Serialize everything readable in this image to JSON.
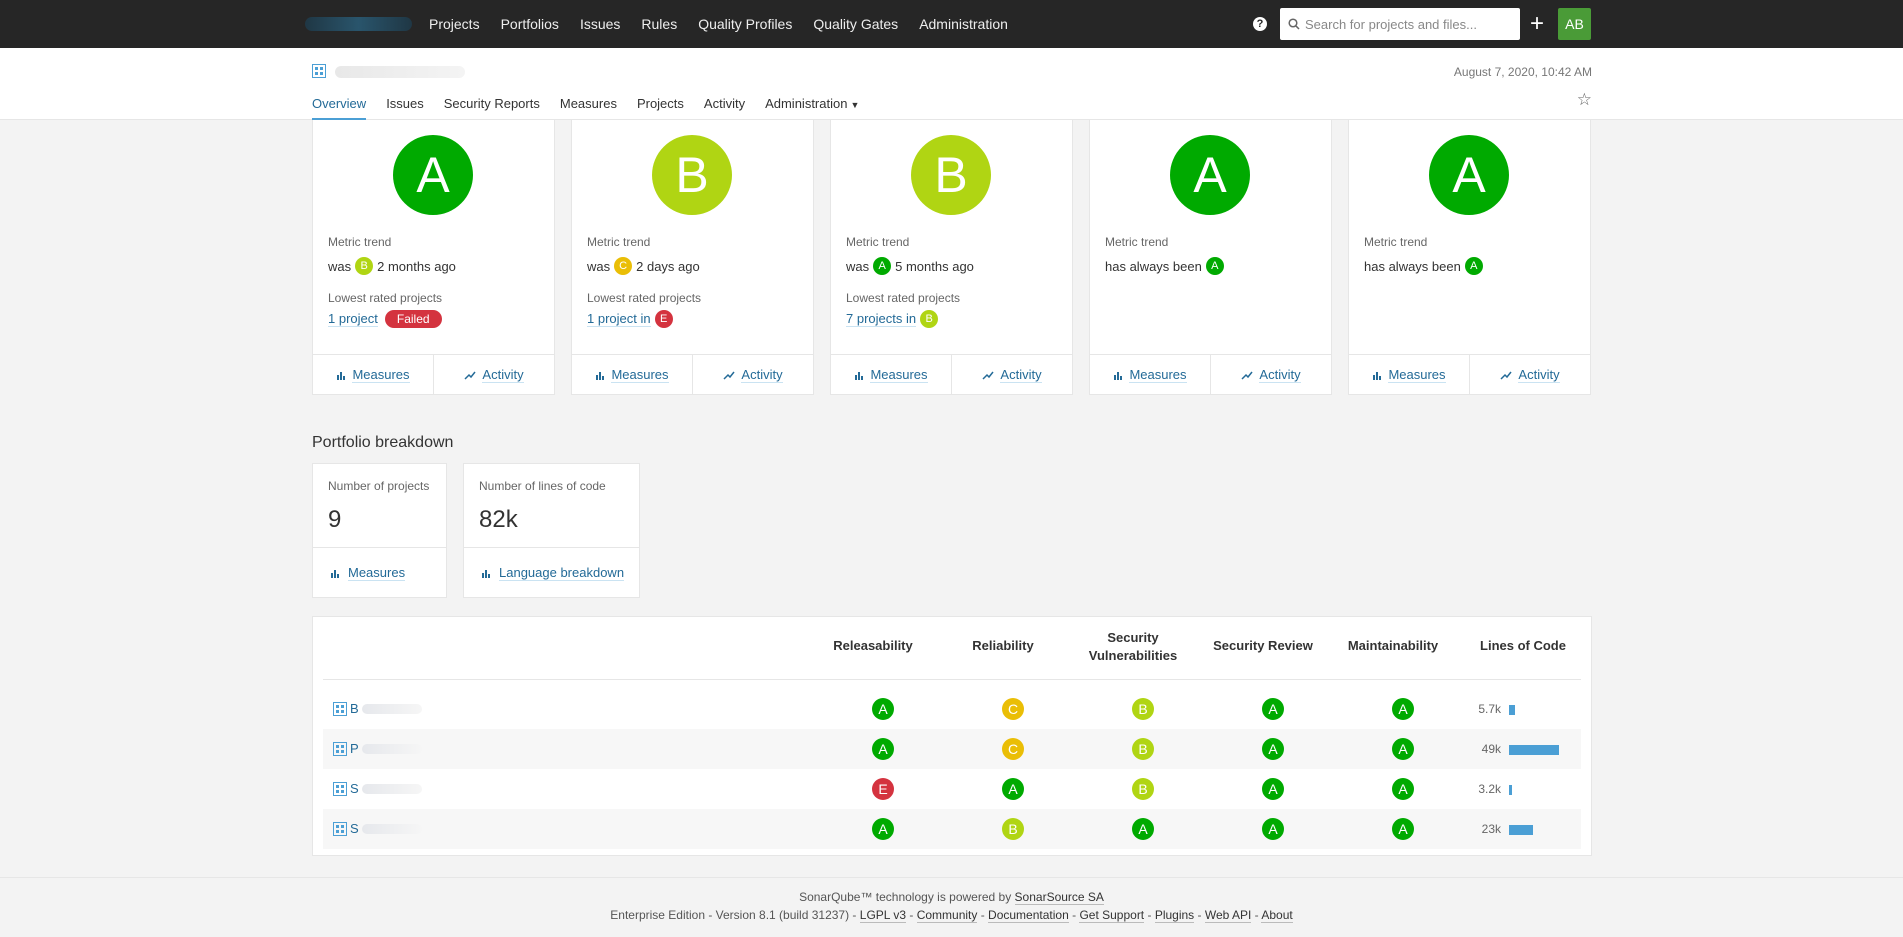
{
  "nav": {
    "links": [
      "Projects",
      "Portfolios",
      "Issues",
      "Rules",
      "Quality Profiles",
      "Quality Gates",
      "Administration"
    ],
    "search_placeholder": "Search for projects and files...",
    "user_initials": "AB"
  },
  "component": {
    "name_prefix": ".",
    "date": "August 7, 2020, 10:42 AM",
    "tabs": [
      "Overview",
      "Issues",
      "Security Reports",
      "Measures",
      "Projects",
      "Activity",
      "Administration"
    ]
  },
  "rating_cards": [
    {
      "rating": "A",
      "metric_trend_label": "Metric trend",
      "trend_prefix": "was",
      "trend_rating": "B",
      "trend_suffix": "2 months ago",
      "lowest_label": "Lowest rated projects",
      "lowest_link": "1 project",
      "lowest_badge": "Failed",
      "measures": "Measures",
      "activity": "Activity"
    },
    {
      "rating": "B",
      "metric_trend_label": "Metric trend",
      "trend_prefix": "was",
      "trend_rating": "C",
      "trend_suffix": "2 days ago",
      "lowest_label": "Lowest rated projects",
      "lowest_link": "1 project",
      "lowest_in": "in",
      "lowest_rating": "E",
      "measures": "Measures",
      "activity": "Activity"
    },
    {
      "rating": "B",
      "metric_trend_label": "Metric trend",
      "trend_prefix": "was",
      "trend_rating": "A",
      "trend_suffix": "5 months ago",
      "lowest_label": "Lowest rated projects",
      "lowest_link": "7 projects",
      "lowest_in": "in",
      "lowest_rating": "B",
      "measures": "Measures",
      "activity": "Activity"
    },
    {
      "rating": "A",
      "metric_trend_label": "Metric trend",
      "trend_prefix": "has always been",
      "trend_rating": "A",
      "measures": "Measures",
      "activity": "Activity"
    },
    {
      "rating": "A",
      "metric_trend_label": "Metric trend",
      "trend_prefix": "has always been",
      "trend_rating": "A",
      "measures": "Measures",
      "activity": "Activity"
    }
  ],
  "breakdown": {
    "title": "Portfolio breakdown",
    "projects_label": "Number of projects",
    "projects_value": "9",
    "projects_link": "Measures",
    "loc_label": "Number of lines of code",
    "loc_value": "82k",
    "loc_link": "Language breakdown"
  },
  "table": {
    "headers": {
      "releasability": "Releasability",
      "reliability": "Reliability",
      "security_line1": "Security",
      "security_line2": "Vulnerabilities",
      "security_review": "Security Review",
      "maintainability": "Maintainability",
      "loc": "Lines of Code"
    },
    "rows": [
      {
        "initial": "B",
        "releasability": "A",
        "reliability": "C",
        "security": "B",
        "review": "A",
        "maintainability": "A",
        "loc": "5.7k",
        "loc_fraction": 0.116
      },
      {
        "initial": "P",
        "releasability": "A",
        "reliability": "C",
        "security": "B",
        "review": "A",
        "maintainability": "A",
        "loc": "49k",
        "loc_fraction": 1.0
      },
      {
        "initial": "S",
        "releasability": "E",
        "reliability": "A",
        "security": "B",
        "review": "A",
        "maintainability": "A",
        "loc": "3.2k",
        "loc_fraction": 0.065
      },
      {
        "initial": "S",
        "releasability": "A",
        "reliability": "B",
        "security": "A",
        "review": "A",
        "maintainability": "A",
        "loc": "23k",
        "loc_fraction": 0.47
      }
    ]
  },
  "footer": {
    "line1_prefix": "SonarQube™ technology is powered by",
    "line1_link": "SonarSource SA",
    "edition": "Enterprise Edition - Version 8.1 (build 31237) -",
    "links": [
      "LGPL v3",
      "Community",
      "Documentation",
      "Get Support",
      "Plugins",
      "Web API",
      "About"
    ]
  },
  "colors": {
    "A": "#00aa00",
    "B": "#b0d513",
    "C": "#eabe06",
    "E": "#d4333f",
    "link": "#236a97",
    "nav_bg": "#262626"
  }
}
